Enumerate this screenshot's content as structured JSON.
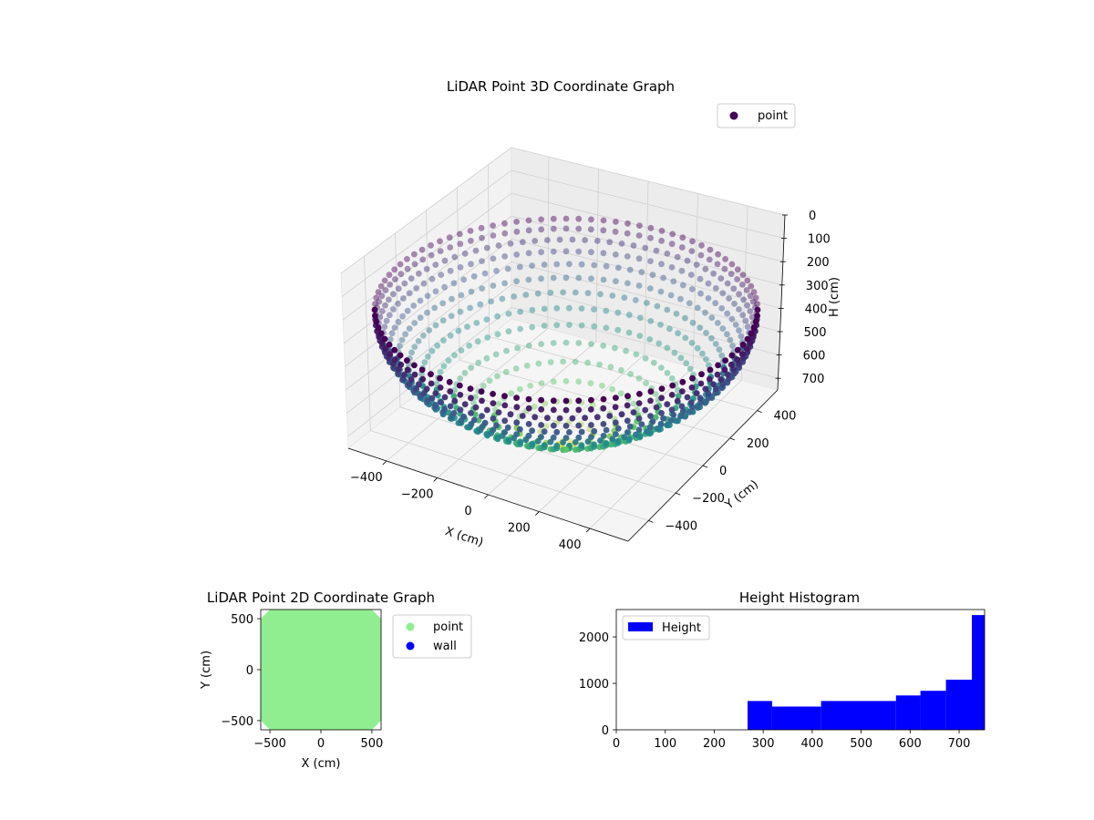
{
  "chart_data": [
    {
      "type": "scatter",
      "projection": "3d",
      "title": "LiDAR Point 3D Coordinate Graph",
      "xlabel": "X (cm)",
      "ylabel": "Y (cm)",
      "zlabel": "H (cm)",
      "legend": {
        "position": "top-right",
        "entries": [
          {
            "name": "point",
            "color": "#440154"
          }
        ]
      },
      "x_ticks": [
        "−400",
        "−200",
        "0",
        "200",
        "400"
      ],
      "y_ticks": [
        "400",
        "200",
        "0",
        "−200",
        "−400"
      ],
      "z_ticks": [
        "0",
        "100",
        "200",
        "300",
        "400",
        "500",
        "600",
        "700"
      ],
      "xlim": [
        -550,
        550
      ],
      "ylim": [
        -550,
        550
      ],
      "zlim": [
        0,
        750
      ],
      "z_inverted": true,
      "grid": true,
      "colormap": "viridis",
      "rings": [
        {
          "height": 0,
          "radius": 520
        },
        {
          "height": 50,
          "radius": 518
        },
        {
          "height": 100,
          "radius": 510
        },
        {
          "height": 150,
          "radius": 498
        },
        {
          "height": 200,
          "radius": 480
        },
        {
          "height": 250,
          "radius": 457
        },
        {
          "height": 300,
          "radius": 428
        },
        {
          "height": 350,
          "radius": 393
        },
        {
          "height": 400,
          "radius": 352
        },
        {
          "height": 450,
          "radius": 305
        },
        {
          "height": 500,
          "radius": 252
        },
        {
          "height": 550,
          "radius": 195
        },
        {
          "height": 600,
          "radius": 135
        },
        {
          "height": 650,
          "radius": 72
        },
        {
          "height": 700,
          "radius": 20
        }
      ]
    },
    {
      "type": "scatter",
      "title": "LiDAR Point 2D Coordinate Graph",
      "xlabel": "X (cm)",
      "ylabel": "Y (cm)",
      "x_ticks": [
        "−500",
        "0",
        "500"
      ],
      "y_ticks": [
        "500",
        "0",
        "−500"
      ],
      "xlim": [
        -590,
        590
      ],
      "ylim": [
        -590,
        590
      ],
      "legend": {
        "position": "outside-right",
        "entries": [
          {
            "name": "point",
            "color": "#90ee90"
          },
          {
            "name": "wall",
            "color": "#0000ff"
          }
        ]
      },
      "point_region": {
        "half_width": 590,
        "corner_cut": 90,
        "color": "#90ee90"
      }
    },
    {
      "type": "bar",
      "title": "Height Histogram",
      "legend": {
        "position": "top-left",
        "entries": [
          {
            "name": "Height",
            "color": "#0000ff"
          }
        ]
      },
      "x_ticks": [
        "0",
        "100",
        "200",
        "300",
        "400",
        "500",
        "600",
        "700"
      ],
      "y_ticks": [
        "0",
        "1000",
        "2000"
      ],
      "xlim": [
        0,
        752
      ],
      "ylim": [
        0,
        2590
      ],
      "bar_color": "#0000ff",
      "bins": [
        {
          "start": 268,
          "end": 318,
          "count": 620
        },
        {
          "start": 318,
          "end": 418,
          "count": 500
        },
        {
          "start": 418,
          "end": 571,
          "count": 620
        },
        {
          "start": 571,
          "end": 621,
          "count": 740
        },
        {
          "start": 621,
          "end": 673,
          "count": 840
        },
        {
          "start": 673,
          "end": 726,
          "count": 1080
        },
        {
          "start": 726,
          "end": 752,
          "count": 2470
        }
      ]
    }
  ]
}
